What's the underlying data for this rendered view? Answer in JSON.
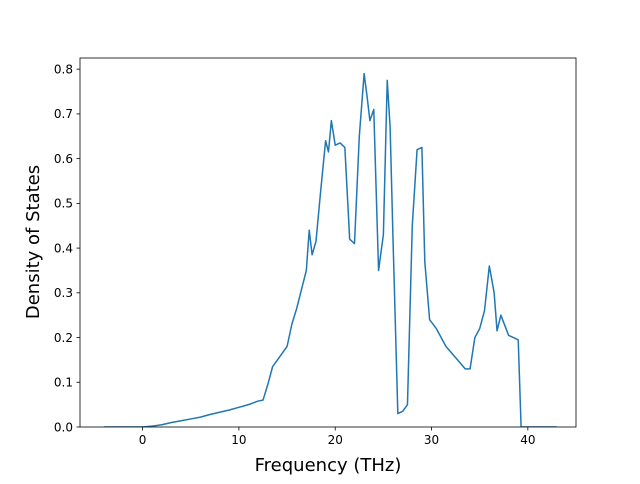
{
  "chart_data": {
    "type": "line",
    "title": "",
    "xlabel": "Frequency (THz)",
    "ylabel": "Density of States",
    "xlim": [
      -6.5,
      45
    ],
    "ylim": [
      0,
      0.825
    ],
    "xticks": [
      0,
      10,
      20,
      30,
      40
    ],
    "yticks": [
      0.0,
      0.1,
      0.2,
      0.3,
      0.4,
      0.5,
      0.6,
      0.7,
      0.8
    ],
    "xtick_labels": [
      "0",
      "10",
      "20",
      "30",
      "40"
    ],
    "ytick_labels": [
      "0.0",
      "0.1",
      "0.2",
      "0.3",
      "0.4",
      "0.5",
      "0.6",
      "0.7",
      "0.8"
    ],
    "grid": false,
    "legend": null,
    "line_color": "#1f77b4",
    "series": [
      {
        "x": [
          -4,
          0,
          1,
          2,
          3,
          4,
          5,
          6,
          7,
          8,
          9,
          10,
          11,
          12,
          12.5,
          13,
          13.5,
          14,
          15,
          15.5,
          16,
          17,
          17.3,
          17.6,
          18,
          18.5,
          19,
          19.3,
          19.6,
          20,
          20.5,
          21,
          21.5,
          22,
          22.5,
          23,
          23.3,
          23.6,
          24,
          24.5,
          25,
          25.4,
          25.7,
          26,
          26.5,
          27,
          27.5,
          28,
          28.5,
          29,
          29.3,
          29.8,
          30.5,
          31.5,
          32.5,
          33.5,
          34,
          34.5,
          35,
          35.5,
          36,
          36.5,
          36.8,
          37.2,
          38,
          38.5,
          39,
          39.3,
          43
        ],
        "y": [
          0.0,
          0.0,
          0.002,
          0.005,
          0.01,
          0.014,
          0.018,
          0.022,
          0.028,
          0.033,
          0.038,
          0.044,
          0.05,
          0.058,
          0.06,
          0.095,
          0.135,
          0.15,
          0.18,
          0.23,
          0.265,
          0.35,
          0.44,
          0.385,
          0.415,
          0.53,
          0.64,
          0.615,
          0.685,
          0.63,
          0.635,
          0.625,
          0.42,
          0.41,
          0.65,
          0.79,
          0.74,
          0.685,
          0.71,
          0.35,
          0.43,
          0.775,
          0.67,
          0.42,
          0.03,
          0.035,
          0.05,
          0.45,
          0.62,
          0.625,
          0.37,
          0.24,
          0.22,
          0.18,
          0.155,
          0.13,
          0.13,
          0.2,
          0.22,
          0.26,
          0.36,
          0.3,
          0.215,
          0.25,
          0.205,
          0.2,
          0.195,
          0.0,
          0.0
        ]
      }
    ]
  }
}
